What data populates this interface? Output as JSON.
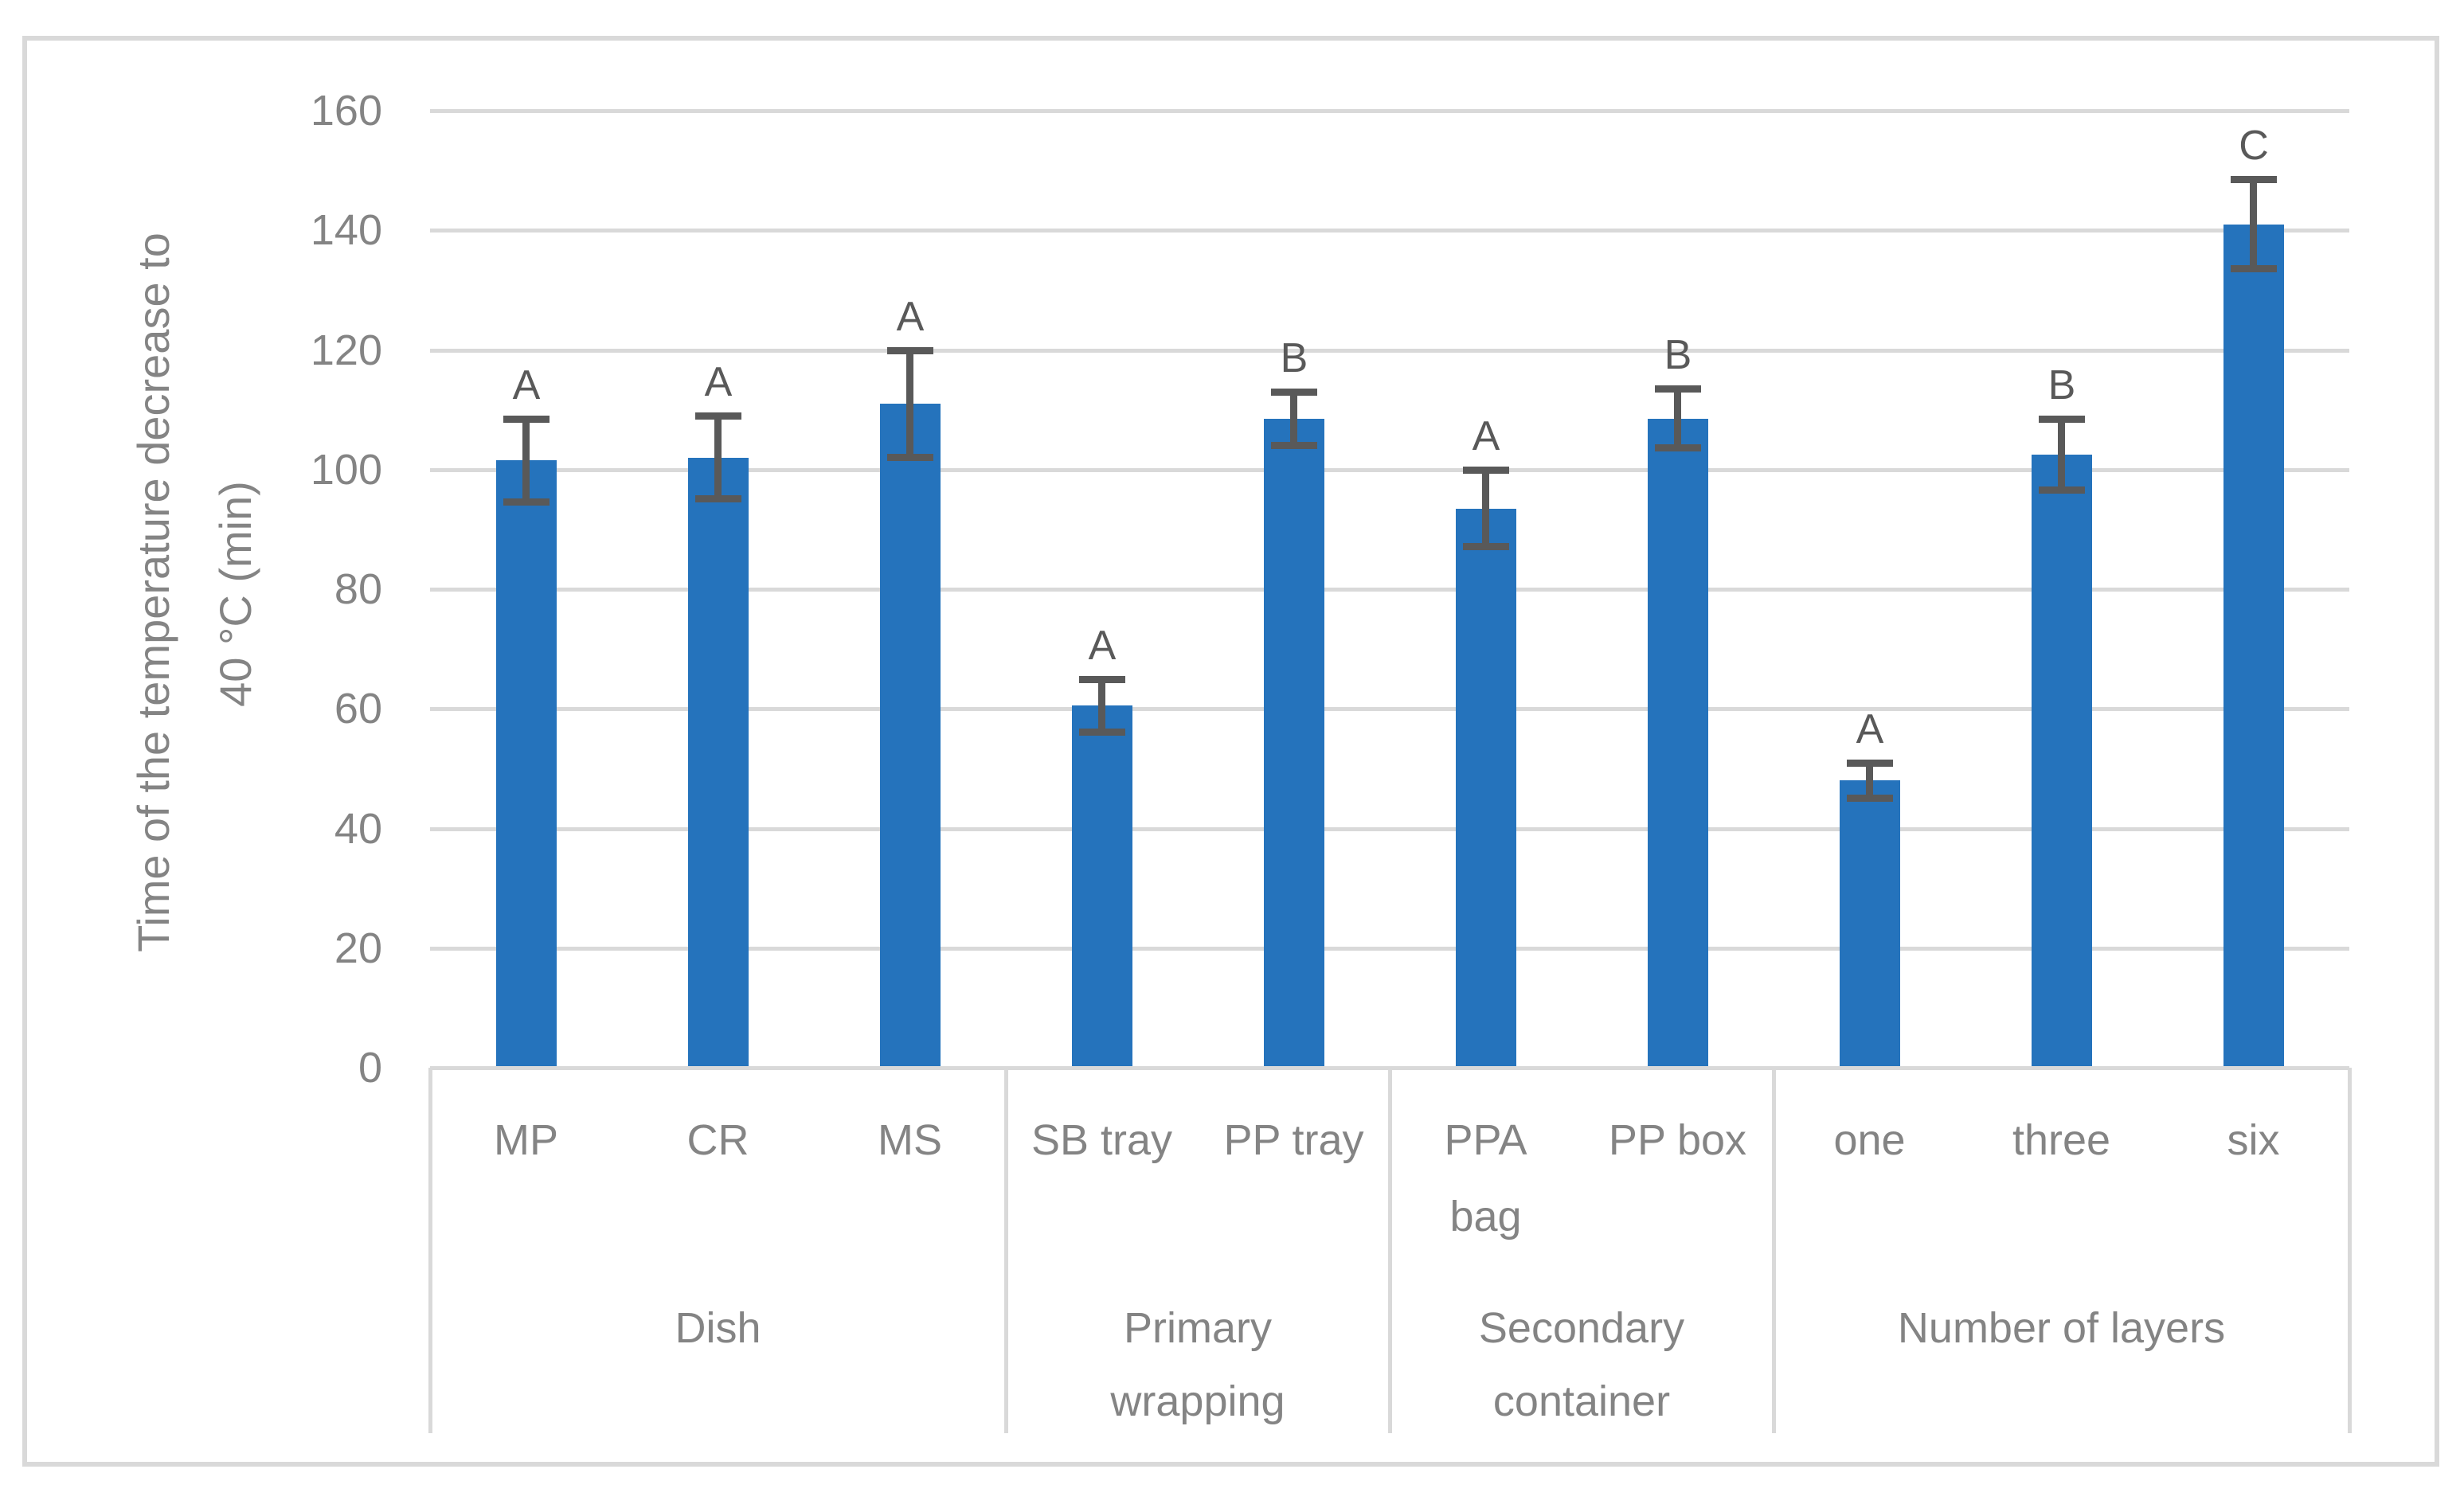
{
  "chart_data": {
    "type": "bar",
    "title": "",
    "ylabel_lines": [
      "Time of the temperature decrease to",
      "40 °C (min)"
    ],
    "xlabel": "",
    "ylim": [
      0,
      160
    ],
    "ytick_step": 20,
    "yticks": [
      0,
      20,
      40,
      60,
      80,
      100,
      120,
      140,
      160
    ],
    "grid": true,
    "legend": false,
    "colors": {
      "bar": "#2573BC",
      "error_and_letters": "#595959",
      "axis_text": "#848484",
      "gridlines_and_borders": "#D9D9D9",
      "background": "#FFFFFF"
    },
    "groups": [
      {
        "label": "Dish",
        "label_lines": [
          "Dish"
        ],
        "items": [
          {
            "label": "MP",
            "label_lines": [
              "MP"
            ],
            "value": 101.5,
            "error": 7,
            "letter": "A"
          },
          {
            "label": "CR",
            "label_lines": [
              "CR"
            ],
            "value": 102,
            "error": 7,
            "letter": "A"
          },
          {
            "label": "MS",
            "label_lines": [
              "MS"
            ],
            "value": 111,
            "error": 9,
            "letter": "A"
          }
        ]
      },
      {
        "label": "Primary wrapping",
        "label_lines": [
          "Primary",
          "wrapping"
        ],
        "items": [
          {
            "label": "SB tray",
            "label_lines": [
              "SB tray"
            ],
            "value": 60.5,
            "error": 4.5,
            "letter": "A"
          },
          {
            "label": "PP tray",
            "label_lines": [
              "PP tray"
            ],
            "value": 108.5,
            "error": 4.5,
            "letter": "B"
          }
        ]
      },
      {
        "label": "Secondary container",
        "label_lines": [
          "Secondary",
          "container"
        ],
        "items": [
          {
            "label": "PPA bag",
            "label_lines": [
              "PPA",
              "bag"
            ],
            "value": 93.5,
            "error": 6.5,
            "letter": "A"
          },
          {
            "label": "PP box",
            "label_lines": [
              "PP box"
            ],
            "value": 108.5,
            "error": 5,
            "letter": "B"
          }
        ]
      },
      {
        "label": "Number of layers",
        "label_lines": [
          "Number of layers"
        ],
        "items": [
          {
            "label": "one",
            "label_lines": [
              "one"
            ],
            "value": 48,
            "error": 3,
            "letter": "A"
          },
          {
            "label": "three",
            "label_lines": [
              "three"
            ],
            "value": 102.5,
            "error": 6,
            "letter": "B"
          },
          {
            "label": "six",
            "label_lines": [
              "six"
            ],
            "value": 141,
            "error": 7.5,
            "letter": "C"
          }
        ]
      }
    ]
  }
}
